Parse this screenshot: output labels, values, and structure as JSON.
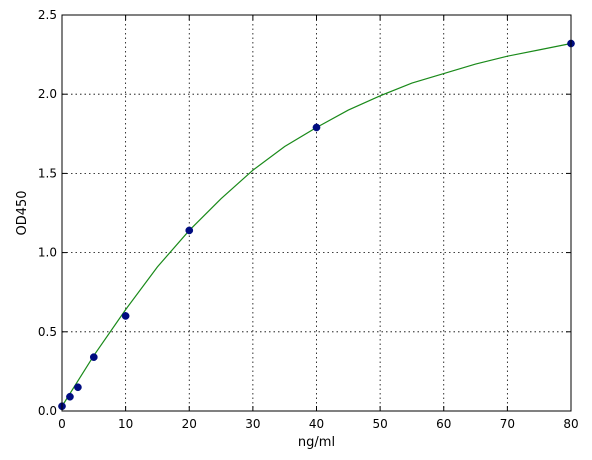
{
  "chart_data": {
    "type": "scatter",
    "xlabel": "ng/ml",
    "ylabel": "OD450",
    "xlim": [
      0,
      80
    ],
    "ylim": [
      0,
      2.5
    ],
    "x_ticks": [
      "0",
      "10",
      "20",
      "30",
      "40",
      "50",
      "60",
      "70",
      "80"
    ],
    "y_ticks": [
      "0.0",
      "0.5",
      "1.0",
      "1.5",
      "2.0",
      "2.5"
    ],
    "grid": true,
    "colors": {
      "points": "#000c80",
      "curve": "#1a8a1a"
    },
    "series": [
      {
        "type": "scatter",
        "x": [
          0,
          1.25,
          2.5,
          5,
          10,
          20,
          40,
          80
        ],
        "y": [
          0.03,
          0.09,
          0.15,
          0.34,
          0.6,
          1.14,
          1.79,
          2.32
        ]
      },
      {
        "type": "line",
        "x": [
          0,
          5,
          10,
          15,
          20,
          25,
          30,
          35,
          40,
          45,
          50,
          55,
          60,
          65,
          70,
          75,
          80
        ],
        "y": [
          0.03,
          0.35,
          0.64,
          0.91,
          1.14,
          1.34,
          1.52,
          1.67,
          1.79,
          1.9,
          1.99,
          2.07,
          2.13,
          2.19,
          2.24,
          2.28,
          2.32
        ]
      }
    ]
  }
}
